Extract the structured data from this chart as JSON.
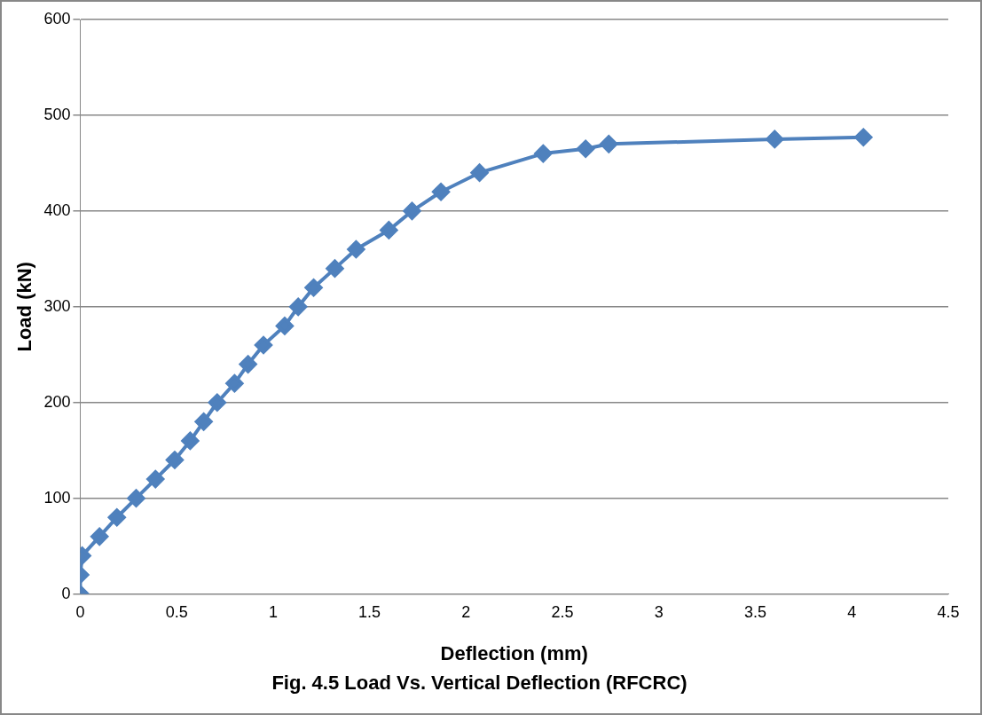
{
  "chart_data": {
    "type": "line",
    "title": "Fig. 4.5 Load Vs. Vertical Deflection (RFCRC)",
    "xlabel": "Deflection (mm)",
    "ylabel": "Load (kN)",
    "xlim": [
      0,
      4.5
    ],
    "xticks": [
      0,
      0.5,
      1,
      1.5,
      2,
      2.5,
      3,
      3.5,
      4,
      4.5
    ],
    "ylim": [
      0,
      600
    ],
    "yticks": [
      0,
      100,
      200,
      300,
      400,
      500,
      600
    ],
    "grid": "y",
    "marker": "diamond",
    "legend": false,
    "series": [
      {
        "color": "#4f81bd",
        "x": [
          0,
          0,
          0.01,
          0.1,
          0.19,
          0.29,
          0.39,
          0.49,
          0.57,
          0.64,
          0.71,
          0.8,
          0.87,
          0.95,
          1.06,
          1.13,
          1.21,
          1.32,
          1.43,
          1.6,
          1.72,
          1.87,
          2.07,
          2.4,
          2.62,
          2.74,
          3.6,
          4.06
        ],
        "values": [
          0,
          20,
          40,
          60,
          80,
          100,
          120,
          140,
          160,
          180,
          200,
          220,
          240,
          260,
          280,
          300,
          320,
          340,
          360,
          380,
          400,
          420,
          440,
          460,
          465,
          470,
          475,
          477
        ]
      }
    ]
  }
}
